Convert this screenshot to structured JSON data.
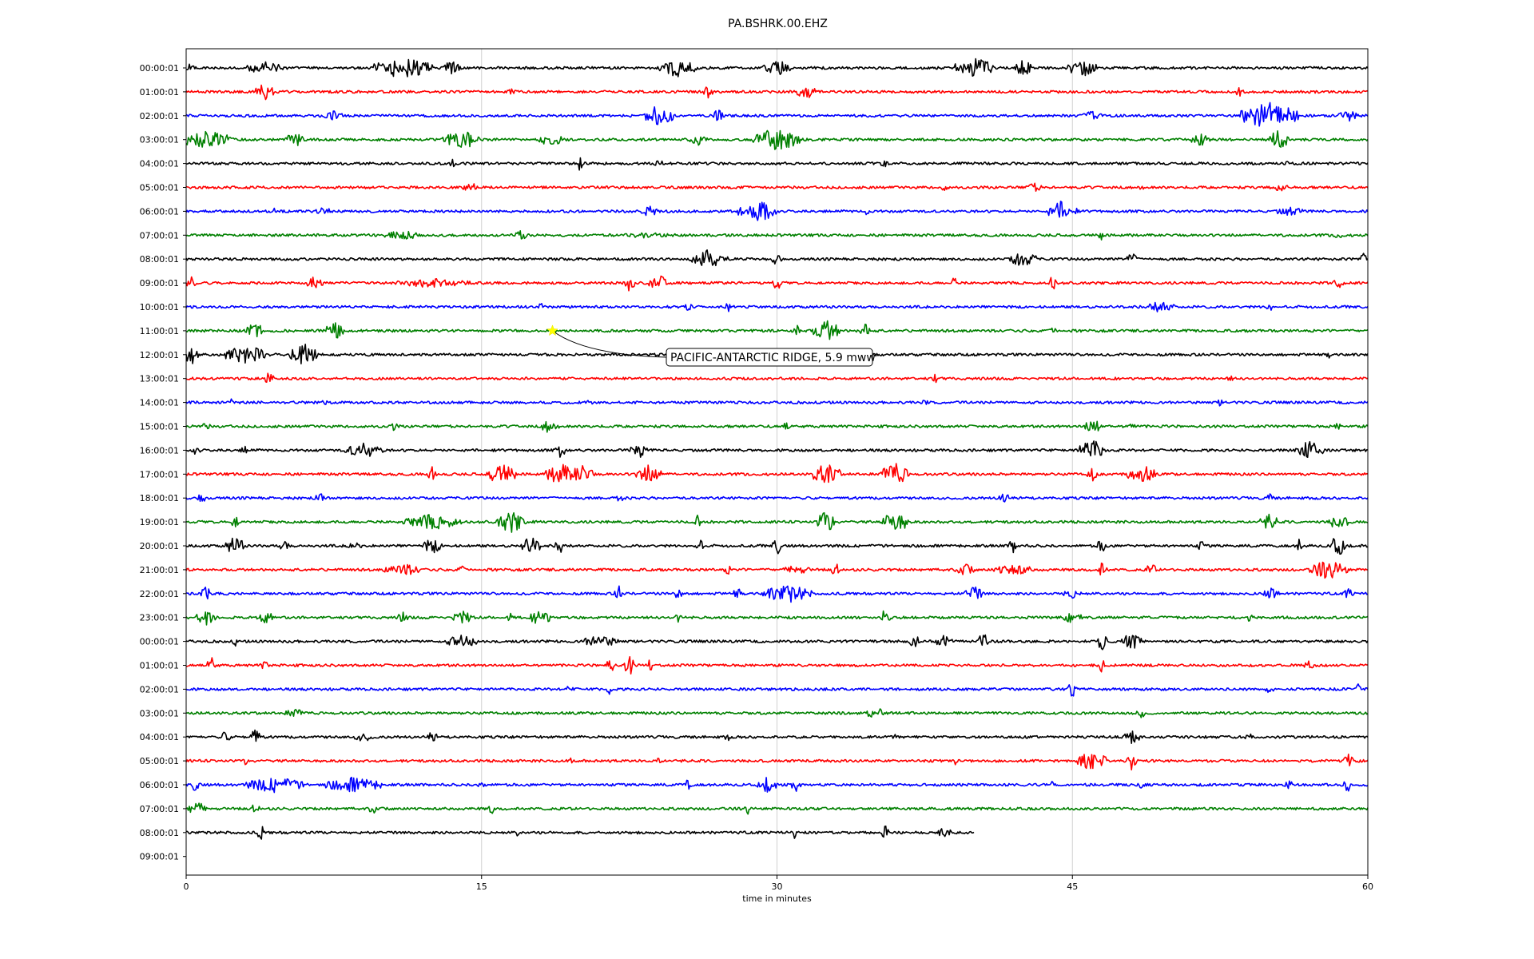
{
  "chart_data": {
    "type": "line",
    "title": "PA.BSHRK.00.EHZ",
    "xlabel": "time in minutes",
    "ylabel": "",
    "xlim": [
      0,
      60
    ],
    "xticks": [
      "0",
      "15",
      "30",
      "45",
      "60"
    ],
    "grid": "vertical lines at 15, 30, 45",
    "legend": "none",
    "trace_colors": [
      "#000000",
      "#ff0000",
      "#0000ff",
      "#008000"
    ],
    "row_labels": [
      "00:00:01",
      "01:00:01",
      "02:00:01",
      "03:00:01",
      "04:00:01",
      "05:00:01",
      "06:00:01",
      "07:00:01",
      "08:00:01",
      "09:00:01",
      "10:00:01",
      "11:00:01",
      "12:00:01",
      "13:00:01",
      "14:00:01",
      "15:00:01",
      "16:00:01",
      "17:00:01",
      "18:00:01",
      "19:00:01",
      "20:00:01",
      "21:00:01",
      "22:00:01",
      "23:00:01",
      "00:00:01",
      "01:00:01",
      "02:00:01",
      "03:00:01",
      "04:00:01",
      "05:00:01",
      "06:00:01",
      "07:00:01",
      "08:00:01",
      "09:00:01"
    ],
    "rows_recorded": 33,
    "last_row_end_minute": 40,
    "bursts": [
      [
        0,
        [
          [
            0,
            1,
            6
          ],
          [
            4,
            2,
            8
          ],
          [
            11,
            3,
            14
          ],
          [
            13.5,
            1,
            10
          ],
          [
            25,
            2,
            12
          ],
          [
            30,
            1.5,
            10
          ],
          [
            40,
            2,
            14
          ],
          [
            42.5,
            1,
            10
          ],
          [
            45.5,
            1.5,
            12
          ]
        ]
      ],
      [
        1,
        [
          [
            4,
            1,
            12
          ],
          [
            16.5,
            0.5,
            6
          ],
          [
            26.5,
            0.5,
            8
          ],
          [
            31.5,
            1,
            10
          ],
          [
            53.5,
            0.5,
            6
          ]
        ]
      ],
      [
        2,
        [
          [
            7.5,
            1,
            6
          ],
          [
            24,
            1.5,
            14
          ],
          [
            27,
            0.5,
            10
          ],
          [
            46,
            1,
            6
          ],
          [
            55,
            3,
            18
          ],
          [
            59,
            1,
            8
          ]
        ]
      ],
      [
        3,
        [
          [
            1,
            3,
            12
          ],
          [
            5.5,
            1,
            10
          ],
          [
            14,
            2,
            12
          ],
          [
            18.5,
            1.5,
            8
          ],
          [
            26,
            1,
            8
          ],
          [
            30,
            2.5,
            16
          ],
          [
            51.5,
            1,
            8
          ],
          [
            55.5,
            1,
            14
          ]
        ]
      ],
      [
        4,
        [
          [
            13.5,
            0.3,
            6
          ],
          [
            20,
            0.3,
            10
          ],
          [
            24,
            0.5,
            6
          ],
          [
            35.5,
            0.5,
            5
          ],
          [
            56,
            0.5,
            8
          ]
        ]
      ],
      [
        5,
        [
          [
            14.5,
            1,
            6
          ],
          [
            38.5,
            0.3,
            6
          ],
          [
            43,
            1,
            6
          ],
          [
            48.5,
            0.5,
            6
          ],
          [
            55.5,
            1,
            6
          ]
        ]
      ],
      [
        6,
        [
          [
            4.5,
            0.3,
            6
          ],
          [
            7,
            1,
            5
          ],
          [
            23.5,
            1,
            8
          ],
          [
            29,
            2,
            14
          ],
          [
            34.5,
            0.5,
            5
          ],
          [
            44.5,
            1.5,
            14
          ],
          [
            56,
            1.5,
            6
          ]
        ]
      ],
      [
        7,
        [
          [
            11,
            2,
            6
          ],
          [
            17,
            1,
            6
          ],
          [
            23.5,
            3,
            4
          ],
          [
            46.5,
            0.3,
            8
          ],
          [
            58.5,
            0.3,
            8
          ]
        ]
      ],
      [
        8,
        [
          [
            26.5,
            2,
            12
          ],
          [
            30,
            0.5,
            10
          ],
          [
            42.5,
            1.5,
            10
          ],
          [
            48,
            0.5,
            12
          ],
          [
            59.8,
            0.3,
            14
          ]
        ]
      ],
      [
        9,
        [
          [
            0.3,
            0.5,
            12
          ],
          [
            6.5,
            1,
            8
          ],
          [
            12.5,
            4,
            6
          ],
          [
            22.5,
            0.5,
            12
          ],
          [
            24,
            1,
            10
          ],
          [
            30,
            0.5,
            10
          ],
          [
            39,
            0.3,
            8
          ],
          [
            44,
            0.5,
            10
          ],
          [
            58.5,
            0.5,
            10
          ]
        ]
      ],
      [
        10,
        [
          [
            18,
            0.3,
            6
          ],
          [
            25.5,
            0.5,
            5
          ],
          [
            27.5,
            0.3,
            8
          ],
          [
            49.5,
            1.5,
            8
          ],
          [
            55,
            0.5,
            6
          ]
        ]
      ],
      [
        11,
        [
          [
            3.5,
            1,
            10
          ],
          [
            7.5,
            1,
            12
          ],
          [
            31,
            0.5,
            10
          ],
          [
            32.5,
            1.5,
            14
          ],
          [
            34.5,
            0.5,
            12
          ],
          [
            44,
            0.5,
            6
          ]
        ]
      ],
      [
        12,
        [
          [
            0.3,
            1,
            12
          ],
          [
            3,
            2,
            14
          ],
          [
            6,
            1.5,
            14
          ],
          [
            58,
            0.3,
            5
          ]
        ]
      ],
      [
        13,
        [
          [
            4.2,
            0.5,
            8
          ],
          [
            38,
            0.3,
            8
          ],
          [
            53,
            0.5,
            4
          ]
        ]
      ],
      [
        14,
        [
          [
            2.3,
            0.3,
            5
          ],
          [
            7,
            0.3,
            8
          ],
          [
            20.5,
            0.3,
            5
          ],
          [
            37.5,
            0.3,
            6
          ],
          [
            52.5,
            0.3,
            5
          ]
        ]
      ],
      [
        15,
        [
          [
            1,
            0.5,
            5
          ],
          [
            10.5,
            0.5,
            6
          ],
          [
            18.5,
            1,
            10
          ],
          [
            30.5,
            0.5,
            6
          ],
          [
            46,
            1,
            10
          ],
          [
            48,
            0.5,
            5
          ],
          [
            58.5,
            0.5,
            5
          ]
        ]
      ],
      [
        16,
        [
          [
            0.5,
            0.5,
            6
          ],
          [
            3,
            0.5,
            6
          ],
          [
            9,
            2,
            10
          ],
          [
            19,
            0.5,
            10
          ],
          [
            23,
            1,
            10
          ],
          [
            46,
            1.5,
            14
          ],
          [
            57,
            1.5,
            12
          ]
        ]
      ],
      [
        17,
        [
          [
            12.5,
            0.5,
            12
          ],
          [
            16,
            1.5,
            14
          ],
          [
            19,
            1.5,
            14
          ],
          [
            20,
            1.5,
            12
          ],
          [
            23.5,
            1.5,
            12
          ],
          [
            32.5,
            1.5,
            14
          ],
          [
            36,
            1.5,
            14
          ],
          [
            46,
            0.5,
            10
          ],
          [
            48.5,
            1.5,
            12
          ]
        ]
      ],
      [
        18,
        [
          [
            0.8,
            0.5,
            10
          ],
          [
            6.8,
            0.5,
            10
          ],
          [
            22,
            0.5,
            5
          ],
          [
            41.5,
            0.5,
            10
          ],
          [
            55,
            0.5,
            6
          ]
        ]
      ],
      [
        19,
        [
          [
            2.5,
            0.5,
            8
          ],
          [
            12.5,
            3,
            10
          ],
          [
            16.5,
            1.5,
            14
          ],
          [
            26,
            0.3,
            10
          ],
          [
            32.5,
            1,
            16
          ],
          [
            36,
            1.5,
            14
          ],
          [
            55,
            1,
            10
          ],
          [
            58.5,
            1,
            10
          ]
        ]
      ],
      [
        20,
        [
          [
            2.5,
            1,
            12
          ],
          [
            5,
            0.5,
            8
          ],
          [
            8.5,
            1,
            5
          ],
          [
            12.5,
            1,
            10
          ],
          [
            17.5,
            1,
            12
          ],
          [
            19,
            0.5,
            10
          ],
          [
            26,
            0.5,
            12
          ],
          [
            30,
            0.5,
            12
          ],
          [
            42,
            0.5,
            10
          ],
          [
            46.5,
            0.5,
            10
          ],
          [
            51.5,
            0.3,
            10
          ],
          [
            56.5,
            0.3,
            10
          ],
          [
            58.5,
            1,
            14
          ]
        ]
      ],
      [
        21,
        [
          [
            11,
            2,
            8
          ],
          [
            14,
            0.5,
            6
          ],
          [
            27.5,
            0.5,
            6
          ],
          [
            31,
            1.5,
            6
          ],
          [
            33,
            0.5,
            10
          ],
          [
            39.5,
            1,
            8
          ],
          [
            42,
            2,
            8
          ],
          [
            46.5,
            0.5,
            10
          ],
          [
            49,
            0.5,
            10
          ],
          [
            58,
            2,
            12
          ]
        ]
      ],
      [
        22,
        [
          [
            1,
            0.5,
            10
          ],
          [
            22,
            0.5,
            10
          ],
          [
            25,
            0.5,
            8
          ],
          [
            28,
            0.5,
            8
          ],
          [
            30.5,
            2.5,
            12
          ],
          [
            40,
            1,
            10
          ],
          [
            45,
            1,
            6
          ],
          [
            55,
            1,
            8
          ],
          [
            59,
            0.5,
            8
          ]
        ]
      ],
      [
        23,
        [
          [
            1,
            1,
            10
          ],
          [
            4,
            1,
            8
          ],
          [
            11,
            0.5,
            8
          ],
          [
            14,
            1,
            10
          ],
          [
            16.5,
            0.3,
            10
          ],
          [
            18,
            1,
            12
          ],
          [
            25,
            0.5,
            6
          ],
          [
            35.5,
            0.5,
            12
          ],
          [
            45,
            1,
            8
          ],
          [
            54,
            0.3,
            8
          ]
        ]
      ],
      [
        24,
        [
          [
            2.5,
            0.3,
            6
          ],
          [
            14,
            1.5,
            10
          ],
          [
            21,
            2,
            8
          ],
          [
            37,
            0.5,
            10
          ],
          [
            38.5,
            1,
            8
          ],
          [
            40.5,
            0.5,
            14
          ],
          [
            46.5,
            0.5,
            12
          ],
          [
            48,
            1,
            12
          ]
        ]
      ],
      [
        25,
        [
          [
            1.3,
            0.5,
            12
          ],
          [
            4,
            0.5,
            6
          ],
          [
            21.5,
            0.5,
            12
          ],
          [
            22.5,
            0.5,
            14
          ],
          [
            23.5,
            0.3,
            12
          ],
          [
            46.5,
            0.3,
            10
          ],
          [
            57,
            0.5,
            6
          ]
        ]
      ],
      [
        26,
        [
          [
            19.5,
            0.5,
            6
          ],
          [
            21.5,
            0.3,
            8
          ],
          [
            45,
            0.5,
            10
          ],
          [
            55,
            0.5,
            5
          ],
          [
            59.5,
            0.3,
            8
          ]
        ]
      ],
      [
        27,
        [
          [
            5.5,
            1,
            6
          ],
          [
            35,
            1,
            8
          ],
          [
            48.5,
            0.5,
            10
          ]
        ]
      ],
      [
        28,
        [
          [
            2,
            0.5,
            8
          ],
          [
            3.5,
            0.5,
            14
          ],
          [
            9,
            1,
            6
          ],
          [
            12.5,
            0.5,
            8
          ],
          [
            27.5,
            0.3,
            6
          ],
          [
            36,
            0.3,
            6
          ],
          [
            48,
            1,
            8
          ],
          [
            54,
            0.5,
            5
          ]
        ]
      ],
      [
        29,
        [
          [
            3,
            0.3,
            6
          ],
          [
            19.5,
            0.3,
            6
          ],
          [
            24,
            0.3,
            6
          ],
          [
            39,
            0.5,
            6
          ],
          [
            46,
            1.5,
            14
          ],
          [
            48,
            0.5,
            12
          ],
          [
            59,
            0.5,
            10
          ]
        ]
      ],
      [
        30,
        [
          [
            0.5,
            0.5,
            10
          ],
          [
            4.5,
            3,
            10
          ],
          [
            8.5,
            3,
            10
          ],
          [
            15,
            0.5,
            6
          ],
          [
            25.5,
            0.3,
            14
          ],
          [
            29.5,
            1,
            10
          ],
          [
            31,
            0.5,
            12
          ],
          [
            44,
            0.3,
            5
          ],
          [
            48.5,
            0.5,
            5
          ],
          [
            56,
            0.5,
            6
          ],
          [
            59,
            0.5,
            10
          ]
        ]
      ],
      [
        31,
        [
          [
            0.5,
            1,
            10
          ],
          [
            3.5,
            0.5,
            8
          ],
          [
            9.5,
            0.5,
            8
          ],
          [
            15.5,
            0.3,
            8
          ],
          [
            28.5,
            0.3,
            8
          ]
        ]
      ],
      [
        32,
        [
          [
            3.8,
            0.3,
            14
          ],
          [
            16.8,
            0.3,
            5
          ],
          [
            30.8,
            0.3,
            12
          ],
          [
            35.5,
            0.3,
            12
          ],
          [
            38.5,
            1,
            6
          ]
        ]
      ]
    ],
    "annotation": {
      "text": "PACIFIC-ANTARCTIC RIDGE, 5.9 mww",
      "row": 11,
      "minute": 18.6
    }
  }
}
